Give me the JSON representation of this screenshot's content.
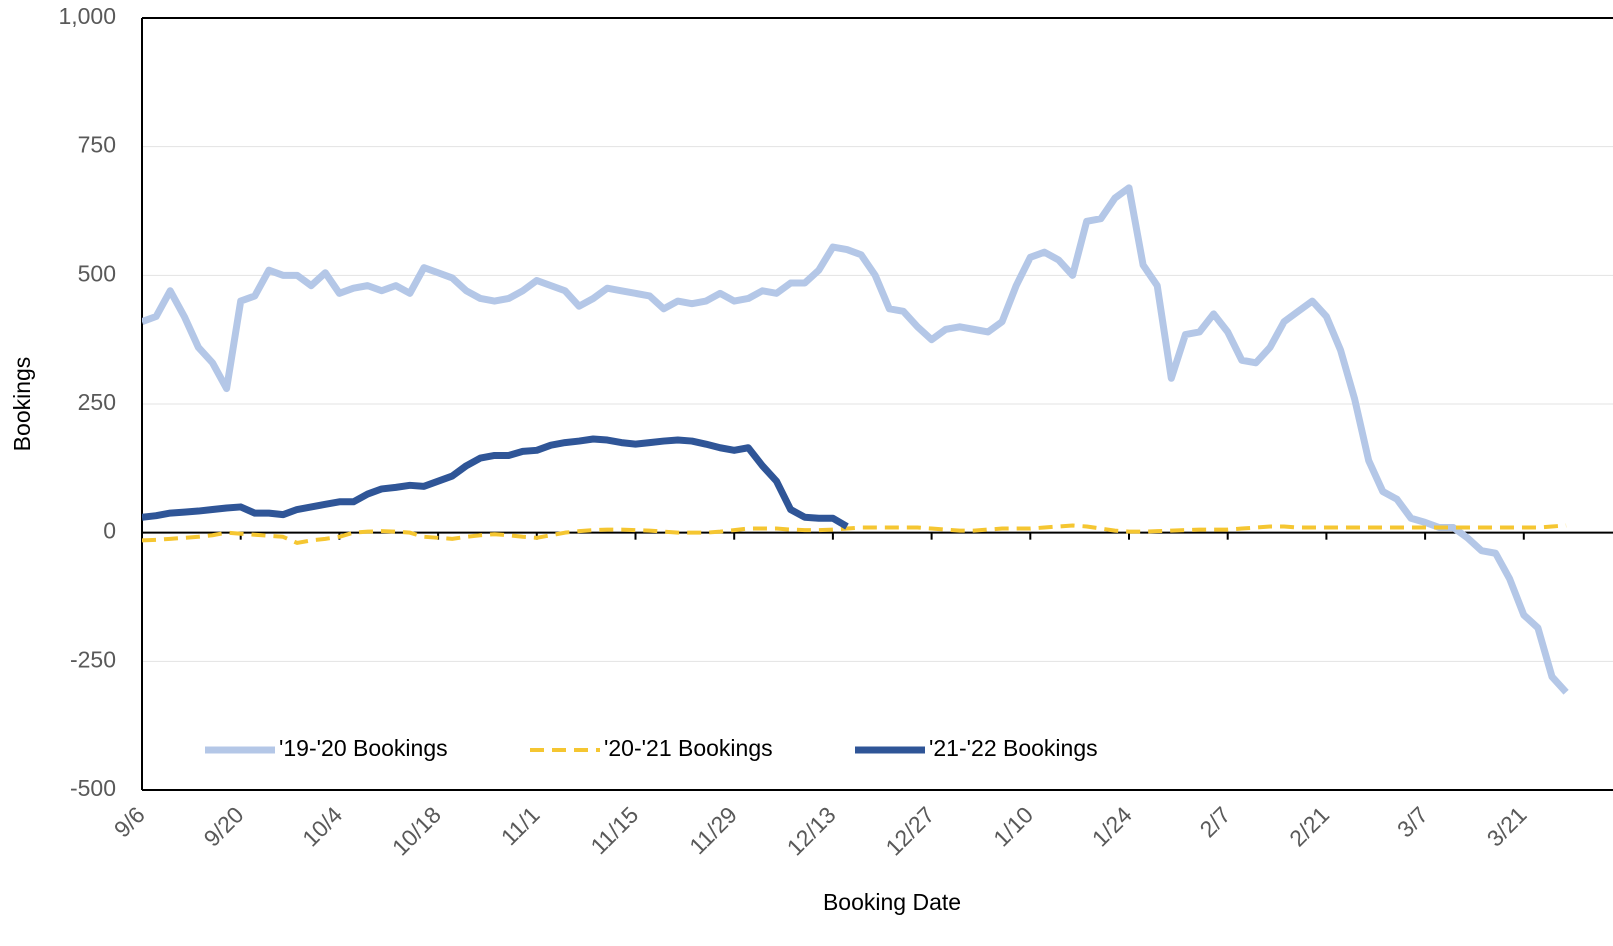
{
  "chart_data": {
    "type": "line",
    "x_label": "Booking Date",
    "y_label": "Bookings",
    "categories": [
      "9/6",
      null,
      null,
      null,
      null,
      null,
      null,
      "9/20",
      null,
      null,
      null,
      null,
      null,
      null,
      "10/4",
      null,
      null,
      null,
      null,
      null,
      null,
      "10/18",
      null,
      null,
      null,
      null,
      null,
      null,
      "11/1",
      null,
      null,
      null,
      null,
      null,
      null,
      "11/15",
      null,
      null,
      null,
      null,
      null,
      null,
      "11/29",
      null,
      null,
      null,
      null,
      null,
      null,
      "12/13",
      null,
      null,
      null,
      null,
      null,
      null,
      "12/27",
      null,
      null,
      null,
      null,
      null,
      null,
      "1/10",
      null,
      null,
      null,
      null,
      null,
      null,
      "1/24",
      null,
      null,
      null,
      null,
      null,
      null,
      "2/7",
      null,
      null,
      null,
      null,
      null,
      null,
      "2/21",
      null,
      null,
      null,
      null,
      null,
      null,
      "3/7",
      null,
      null,
      null,
      null,
      null,
      null,
      "3/21",
      null,
      null,
      null
    ],
    "series": [
      {
        "name": "'19-'20 Bookings",
        "color": "#b4c7e7",
        "dash": false,
        "width": 7,
        "values": [
          410,
          420,
          470,
          420,
          360,
          330,
          280,
          450,
          460,
          510,
          500,
          500,
          480,
          505,
          465,
          475,
          480,
          470,
          480,
          465,
          515,
          505,
          495,
          470,
          455,
          450,
          455,
          470,
          490,
          480,
          470,
          440,
          455,
          475,
          470,
          465,
          460,
          435,
          450,
          445,
          450,
          465,
          450,
          455,
          470,
          465,
          485,
          485,
          510,
          555,
          550,
          540,
          500,
          435,
          430,
          400,
          375,
          395,
          400,
          395,
          390,
          410,
          480,
          535,
          545,
          530,
          500,
          605,
          610,
          650,
          670,
          520,
          480,
          300,
          385,
          390,
          425,
          390,
          335,
          330,
          360,
          410,
          430,
          450,
          420,
          355,
          260,
          140,
          80,
          65,
          28,
          20,
          10,
          10,
          -10,
          -35,
          -40,
          -90,
          -160,
          -185,
          -280,
          -310
        ]
      },
      {
        "name": "'20-'21 Bookings",
        "color": "#f5c631",
        "dash": true,
        "width": 4,
        "values": [
          -15,
          -14,
          -12,
          -10,
          -8,
          -5,
          0,
          -2,
          -4,
          -6,
          -8,
          -20,
          -15,
          -12,
          -8,
          0,
          2,
          3,
          2,
          0,
          -8,
          -10,
          -12,
          -8,
          -5,
          -3,
          -5,
          -8,
          -10,
          -5,
          0,
          3,
          5,
          6,
          6,
          5,
          4,
          2,
          0,
          0,
          0,
          2,
          5,
          8,
          8,
          8,
          6,
          5,
          5,
          6,
          8,
          10,
          10,
          10,
          10,
          10,
          8,
          6,
          4,
          4,
          6,
          8,
          8,
          8,
          10,
          12,
          14,
          12,
          8,
          4,
          2,
          2,
          3,
          4,
          5,
          6,
          6,
          6,
          8,
          10,
          12,
          12,
          10,
          10,
          10,
          10,
          10,
          10,
          10,
          10,
          10,
          10,
          10,
          10,
          10,
          10,
          10,
          10,
          10,
          10,
          12,
          14
        ]
      },
      {
        "name": "'21-'22 Bookings",
        "color": "#2f5597",
        "dash": false,
        "width": 7,
        "values": [
          30,
          33,
          38,
          40,
          42,
          45,
          48,
          50,
          38,
          38,
          35,
          45,
          50,
          55,
          60,
          60,
          75,
          85,
          88,
          92,
          90,
          100,
          110,
          130,
          145,
          150,
          150,
          158,
          160,
          170,
          175,
          178,
          182,
          180,
          175,
          172,
          175,
          178,
          180,
          178,
          172,
          165,
          160,
          165,
          130,
          100,
          45,
          30,
          28,
          28,
          12,
          null,
          null,
          null,
          null,
          null,
          null,
          null,
          null,
          null,
          null,
          null,
          null,
          null,
          null,
          null,
          null,
          null,
          null,
          null,
          null,
          null,
          null,
          null,
          null,
          null,
          null,
          null,
          null,
          null,
          null,
          null,
          null,
          null,
          null,
          null,
          null,
          null,
          null,
          null,
          null,
          null,
          null,
          null,
          null,
          null,
          null,
          null,
          null,
          null,
          null,
          null
        ]
      }
    ],
    "ylim": [
      -500,
      1000
    ],
    "yticks": [
      -500,
      -250,
      0,
      250,
      500,
      750,
      {
        "value": 1000,
        "label": "1,000"
      }
    ],
    "grid": true,
    "legend": "lower left"
  }
}
